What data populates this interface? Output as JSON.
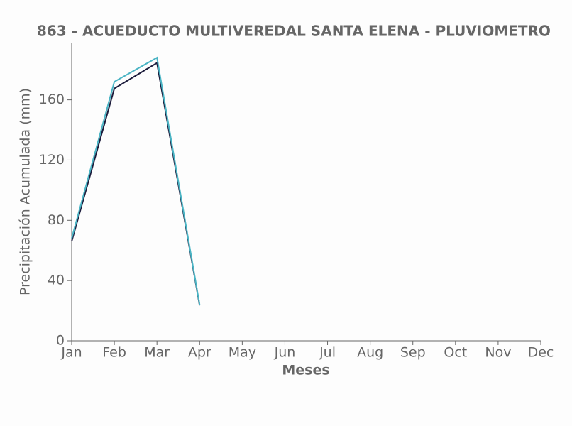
{
  "chart_data": {
    "type": "line",
    "title": "863 - ACUEDUCTO MULTIVEREDAL SANTA ELENA - PLUVIOMETRO",
    "x_label": "Meses",
    "y_label": "Precipitación Acumulada (mm)",
    "categories": [
      "Jan",
      "Feb",
      "Mar",
      "Apr",
      "May",
      "Jun",
      "Jul",
      "Aug",
      "Sep",
      "Oct",
      "Nov",
      "Dec"
    ],
    "series": [
      {
        "color": "#1c1c3c",
        "values": [
          66,
          167.5,
          184.5,
          23.5,
          null,
          null,
          null,
          null,
          null,
          null,
          null,
          null
        ]
      },
      {
        "color": "#4ab4c4",
        "values": [
          68,
          172,
          188,
          24,
          null,
          null,
          null,
          null,
          null,
          null,
          null,
          null
        ]
      }
    ],
    "ylim": [
      0,
      198
    ],
    "yticks": [
      0,
      40,
      80,
      120,
      160
    ],
    "grid": false
  }
}
